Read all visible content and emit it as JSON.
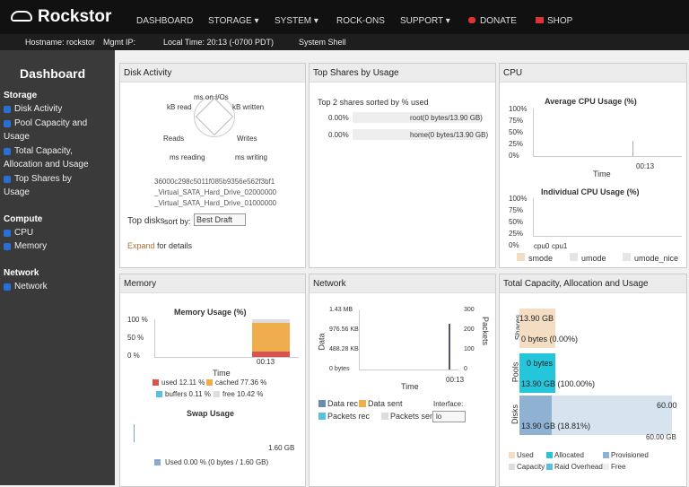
{
  "navbar": {
    "brand": "Rockstor",
    "items": [
      "DASHBOARD",
      "STORAGE ▾",
      "SYSTEM ▾",
      "ROCK-ONS",
      "SUPPORT ▾",
      "DONATE",
      "SHOP"
    ]
  },
  "statusbar": {
    "hostname": "Hostname: rockstor",
    "mgmt_ip": "Mgmt IP:",
    "local_time": "Local Time: 20:13 (-0700 PDT)",
    "shell": "System Shell"
  },
  "sidebar": {
    "title": "Dashboard",
    "groups": [
      {
        "name": "Storage",
        "items": [
          "Disk Activity",
          "Pool Capacity and",
          "Usage",
          "Total Capacity,",
          "Allocation and Usage",
          "Top Shares by",
          "Usage"
        ]
      },
      {
        "name": "Compute",
        "items": [
          "CPU",
          "Memory"
        ]
      },
      {
        "name": "Network",
        "items": [
          "Network"
        ]
      }
    ]
  },
  "disk_activity": {
    "title": "Disk Activity",
    "radar_labels": [
      "ms on I/Os",
      "kB written",
      "Writes",
      "ms writing",
      "ms reading",
      "Reads",
      "kB read"
    ],
    "disks": [
      "36000c298c5011f085b9356e562f3bf1",
      "_Virtual_SATA_Hard_Drive_02000000",
      "_Virtual_SATA_Hard_Drive_01000000"
    ],
    "top_disks": "Top disks",
    "sort_by": "sort by:",
    "sort_option": "Best Draft",
    "expand": "Expand",
    "for_details": "for details"
  },
  "top_shares": {
    "title": "Top Shares by Usage",
    "subtitle": "Top 2 shares sorted by % used",
    "rows": [
      [
        "0.00%",
        "root(0 bytes/13.90 GB)"
      ],
      [
        "0.00%",
        "home(0 bytes/13.90 GB)"
      ]
    ]
  },
  "cpu": {
    "title": "CPU",
    "avg_title": "Average CPU Usage (%)",
    "ticks": [
      "100%",
      "75%",
      "50%",
      "25%",
      "0%"
    ],
    "time": "Time",
    "time_tick": "00:13",
    "ind_title": "Individual CPU Usage (%)",
    "cpus": [
      "cpu0",
      "cpu1"
    ],
    "legend": [
      "smode",
      "umode",
      "umode_nice"
    ]
  },
  "memory": {
    "title": "Memory",
    "usage_title": "Memory Usage (%)",
    "ticks": [
      "100 %",
      "50 %",
      "0 %"
    ],
    "time_tick": "00:13",
    "time": "Time",
    "legend": [
      "used 12.11 %",
      "cached 77.36 %",
      "buffers 0.11 %",
      "free 10.42 %"
    ],
    "swap_title": "Swap Usage",
    "swap_total": "1.60 GB",
    "swap_used": "Used 0.00 % (0 bytes / 1.60 GB)"
  },
  "network": {
    "title": "Network",
    "left_ticks": [
      "1.43 MB",
      "976.56 KB",
      "488.28 KB",
      "0 bytes"
    ],
    "right_ticks": [
      "300",
      "200",
      "100",
      "0"
    ],
    "left_axis": "Data",
    "right_axis": "Packets",
    "time": "Time",
    "time_tick": "00:13",
    "legend": [
      "Data rec",
      "Data sent",
      "Packets rec",
      "Packets sent"
    ],
    "interface_label": "Interface:",
    "interface": "lo"
  },
  "capacity": {
    "title": "Total Capacity, Allocation and Usage",
    "rows": [
      {
        "name": "Shares",
        "top": "13.90 GB",
        "bottom": "0 bytes (0.00%)"
      },
      {
        "name": "Pools",
        "top": "0 bytes",
        "bottom": "13.90 GB (100.00%)"
      },
      {
        "name": "Disks",
        "top": "60.00",
        "bottom": "13.90 GB (18.81%)"
      }
    ],
    "disk_total": "60.00 GB",
    "legend": [
      "Used",
      "Allocated",
      "Provisioned",
      "Capacity",
      "Raid Overhead",
      "Free"
    ]
  }
}
